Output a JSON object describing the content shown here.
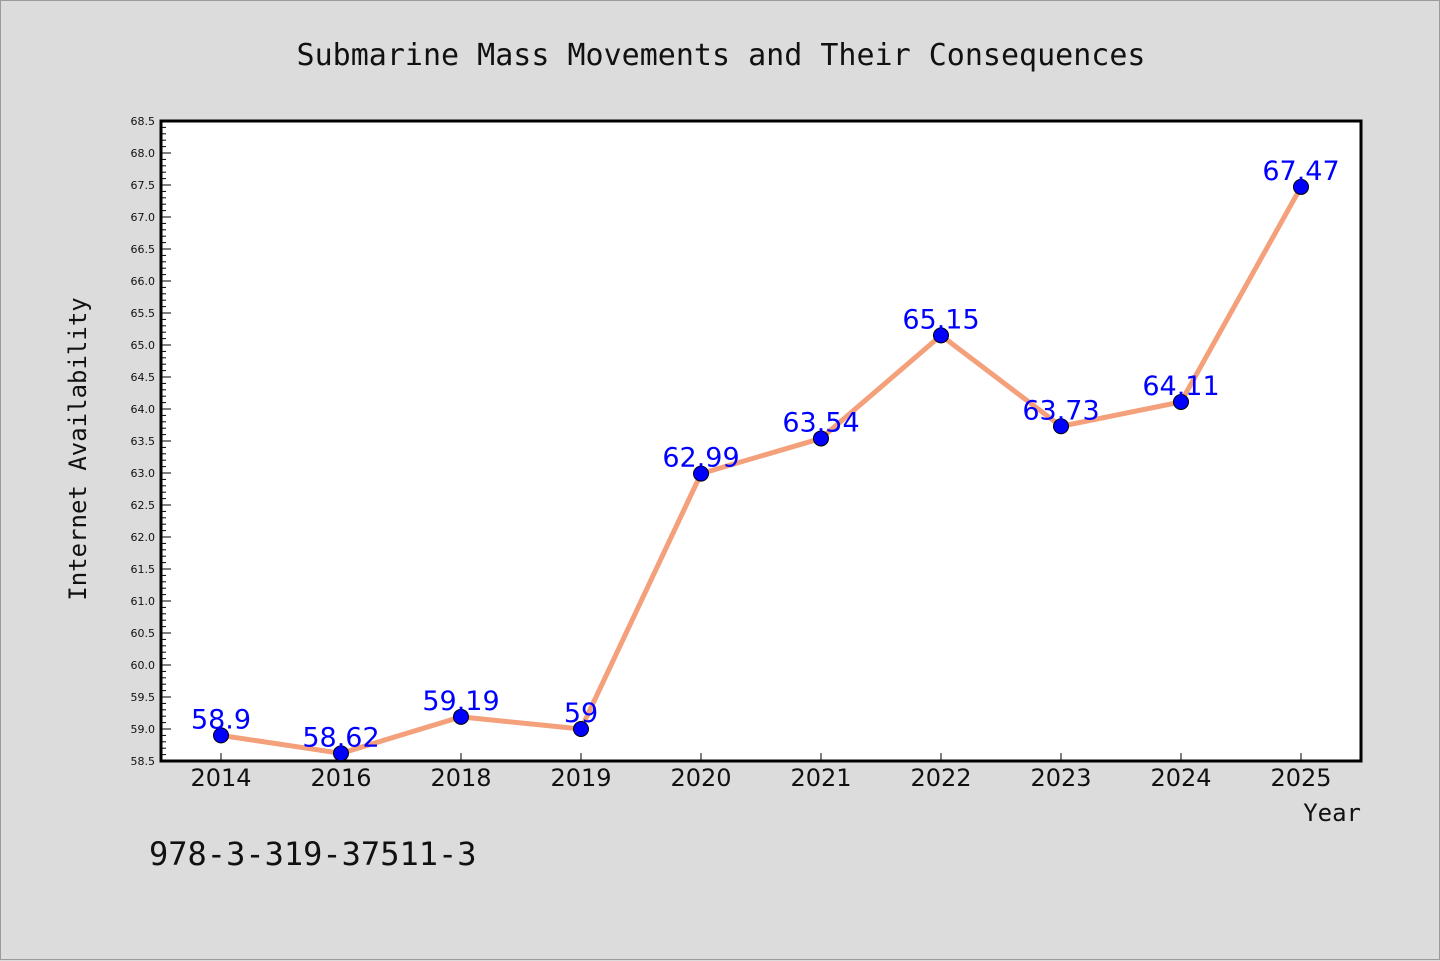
{
  "chart_data": {
    "type": "line",
    "title": "Submarine Mass Movements and Their Consequences",
    "xlabel": "Year",
    "ylabel": "Internet Availability",
    "categories": [
      "2014",
      "2016",
      "2018",
      "2019",
      "2020",
      "2021",
      "2022",
      "2023",
      "2024",
      "2025"
    ],
    "series": [
      {
        "values": [
          58.9,
          58.62,
          59.19,
          59,
          62.99,
          63.54,
          65.15,
          63.73,
          64.11,
          67.47
        ],
        "data_labels": [
          "58.9",
          "58.62",
          "59.19",
          "59",
          "62.99",
          "63.54",
          "65.15",
          "63.73",
          "64.11",
          "67.47"
        ],
        "line_color": "#f4a07a",
        "marker_color": "#0000ff",
        "label_color": "#0000ff"
      }
    ],
    "ylim": [
      58.5,
      68.5
    ],
    "yticks": [
      "58.5",
      "59.0",
      "59.5",
      "60.0",
      "60.5",
      "61.0",
      "61.5",
      "62.0",
      "62.5",
      "63.0",
      "63.5",
      "64.0",
      "64.5",
      "65.0",
      "65.5",
      "66.0",
      "66.5",
      "67.0",
      "67.5",
      "68.0",
      "68.5"
    ],
    "grid": false,
    "legend": "none",
    "background": "#dcdcdc",
    "plot_background": "#ffffff"
  },
  "footer": {
    "text": "978-3-319-37511-3"
  }
}
